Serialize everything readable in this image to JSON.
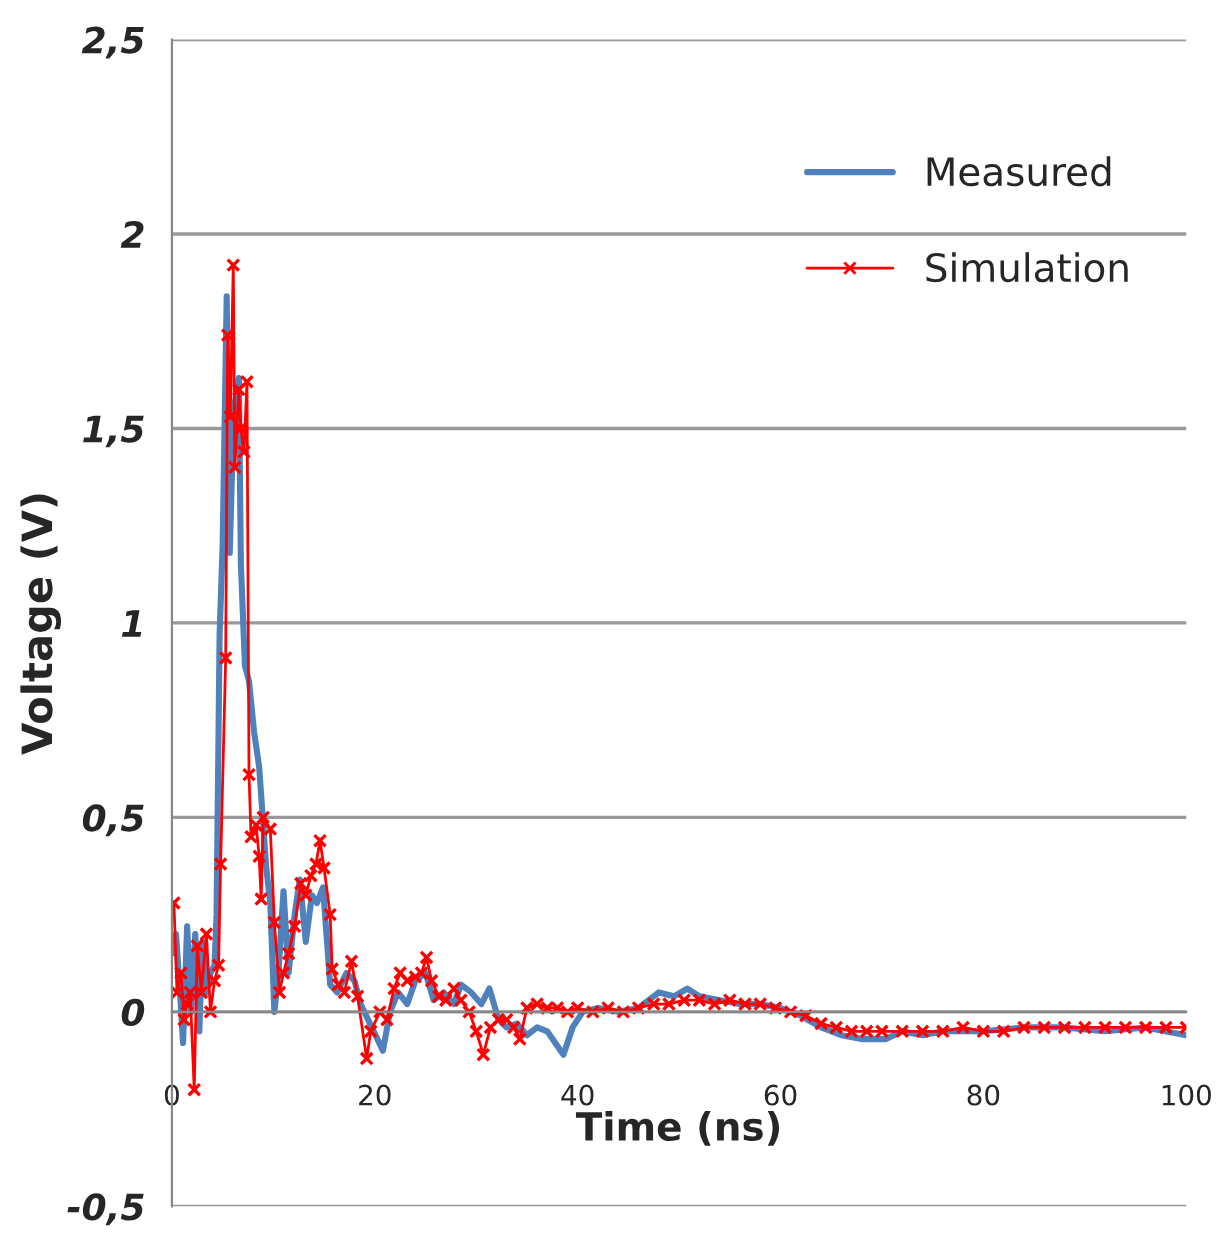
{
  "chart_data": {
    "type": "line",
    "xlabel": "Time (ns)",
    "ylabel": "Voltage (V)",
    "xlim": [
      0,
      100
    ],
    "xticks": [
      0,
      20,
      40,
      60,
      80,
      100
    ],
    "ylim": [
      -0.5,
      2.5
    ],
    "yticks": [
      {
        "value": -0.5,
        "label": "-0,5"
      },
      0,
      {
        "value": 0.5,
        "label": "0,5"
      },
      1,
      {
        "value": 1.5,
        "label": "1,5"
      },
      2,
      {
        "value": 2.5,
        "label": "2,5"
      }
    ],
    "grid": "y",
    "legend": "top right",
    "series": [
      {
        "name": "Measured",
        "color": "#4f81bd",
        "marker": "none",
        "x": [
          0,
          0.4,
          0.8,
          1.1,
          1.5,
          1.9,
          2.3,
          2.7,
          3.0,
          3.4,
          3.8,
          4.2,
          4.4,
          4.7,
          5.0,
          5.4,
          5.7,
          6.1,
          6.6,
          6.8,
          7.2,
          7.6,
          8.1,
          8.6,
          9.3,
          9.7,
          10.1,
          10.5,
          11,
          11.5,
          12.1,
          12.6,
          13.2,
          13.8,
          14.3,
          14.9,
          15.6,
          16.3,
          17.2,
          18.0,
          18.6,
          19.9,
          20.8,
          21.5,
          22.3,
          23.2,
          24.0,
          25.0,
          25.8,
          26.8,
          27.8,
          28.5,
          29.5,
          30.5,
          31.3,
          32.2,
          33,
          34,
          35,
          36,
          37,
          38.6,
          39.5,
          40.5,
          42,
          44,
          46,
          48,
          49.5,
          50.8,
          52,
          54,
          56,
          58,
          60,
          62,
          64,
          66,
          68,
          70.4,
          72,
          74,
          76,
          78,
          80,
          84,
          88,
          92,
          96,
          100
        ],
        "values": [
          0.15,
          0.2,
          0.05,
          -0.08,
          0.22,
          0.0,
          0.2,
          -0.05,
          0.18,
          0.05,
          0.1,
          0.12,
          0.25,
          0.97,
          1.2,
          1.84,
          1.18,
          1.55,
          1.63,
          1.15,
          0.89,
          0.85,
          0.72,
          0.63,
          0.37,
          0.28,
          0.0,
          0.1,
          0.31,
          0.1,
          0.25,
          0.34,
          0.18,
          0.3,
          0.28,
          0.32,
          0.07,
          0.05,
          0.1,
          0.08,
          0.02,
          -0.05,
          -0.1,
          0.0,
          0.05,
          0.02,
          0.08,
          0.1,
          0.03,
          0.05,
          0.02,
          0.07,
          0.05,
          0.02,
          0.06,
          -0.02,
          -0.04,
          -0.03,
          -0.06,
          -0.04,
          -0.05,
          -0.11,
          -0.04,
          0.0,
          0.01,
          0.0,
          0.01,
          0.05,
          0.04,
          0.06,
          0.04,
          0.03,
          0.02,
          0.02,
          0.01,
          -0.01,
          -0.04,
          -0.06,
          -0.07,
          -0.07,
          -0.05,
          -0.06,
          -0.05,
          -0.05,
          -0.05,
          -0.04,
          -0.04,
          -0.05,
          -0.04,
          -0.06
        ]
      },
      {
        "name": "Simulation",
        "color": "#ff0000",
        "marker": "cross",
        "x": [
          0.2,
          0.5,
          0.9,
          1.2,
          1.5,
          1.8,
          2.2,
          2.5,
          2.9,
          3.4,
          3.8,
          4.2,
          4.6,
          4.8,
          5.3,
          5.5,
          5.75,
          6.05,
          6.2,
          6.6,
          6.8,
          7.1,
          7.4,
          7.6,
          7.8,
          8.3,
          8.6,
          8.8,
          9.0,
          9.7,
          10.1,
          10.6,
          11.0,
          11.5,
          12.1,
          12.7,
          13.2,
          13.7,
          14.2,
          14.6,
          15.0,
          15.6,
          15.8,
          16.4,
          17.0,
          17.7,
          18.3,
          19.2,
          19.6,
          20.5,
          21.2,
          21.9,
          22.5,
          23.2,
          24.0,
          24.6,
          25.1,
          25.6,
          26.3,
          27.0,
          27.8,
          28.5,
          29.3,
          30.0,
          30.7,
          31.4,
          32.2,
          33.0,
          33.7,
          34.3,
          35.0,
          36.0,
          37.0,
          38.0,
          39.0,
          40.0,
          41.5,
          43.0,
          44.5,
          46.0,
          47.5,
          49,
          50.5,
          52,
          53.5,
          55,
          56.5,
          58,
          59.5,
          61,
          62.5,
          64,
          65.5,
          67,
          68.5,
          70,
          72,
          74,
          76,
          78,
          80,
          82,
          84,
          86,
          88,
          90,
          92,
          94,
          96,
          98,
          100
        ],
        "values": [
          0.28,
          0.05,
          0.1,
          -0.02,
          0.02,
          0.05,
          -0.2,
          0.17,
          0.05,
          0.2,
          0.0,
          0.08,
          0.12,
          0.38,
          0.91,
          1.74,
          1.53,
          1.92,
          1.4,
          1.6,
          1.5,
          1.44,
          1.62,
          0.61,
          0.45,
          0.48,
          0.4,
          0.29,
          0.5,
          0.47,
          0.23,
          0.05,
          0.1,
          0.15,
          0.22,
          0.33,
          0.3,
          0.35,
          0.38,
          0.44,
          0.37,
          0.25,
          0.11,
          0.07,
          0.05,
          0.13,
          0.04,
          -0.12,
          -0.05,
          0.0,
          -0.02,
          0.06,
          0.1,
          0.08,
          0.09,
          0.1,
          0.14,
          0.08,
          0.04,
          0.03,
          0.06,
          0.03,
          0.0,
          -0.05,
          -0.11,
          -0.04,
          -0.02,
          -0.02,
          -0.04,
          -0.07,
          0.01,
          0.02,
          0.01,
          0.01,
          0.0,
          0.01,
          0.0,
          0.01,
          0.0,
          0.01,
          0.02,
          0.02,
          0.03,
          0.03,
          0.02,
          0.03,
          0.02,
          0.02,
          0.01,
          0.0,
          -0.01,
          -0.03,
          -0.04,
          -0.05,
          -0.05,
          -0.05,
          -0.05,
          -0.05,
          -0.05,
          -0.04,
          -0.05,
          -0.05,
          -0.04,
          -0.04,
          -0.04,
          -0.04,
          -0.04,
          -0.04,
          -0.04,
          -0.04,
          -0.04
        ]
      }
    ]
  }
}
